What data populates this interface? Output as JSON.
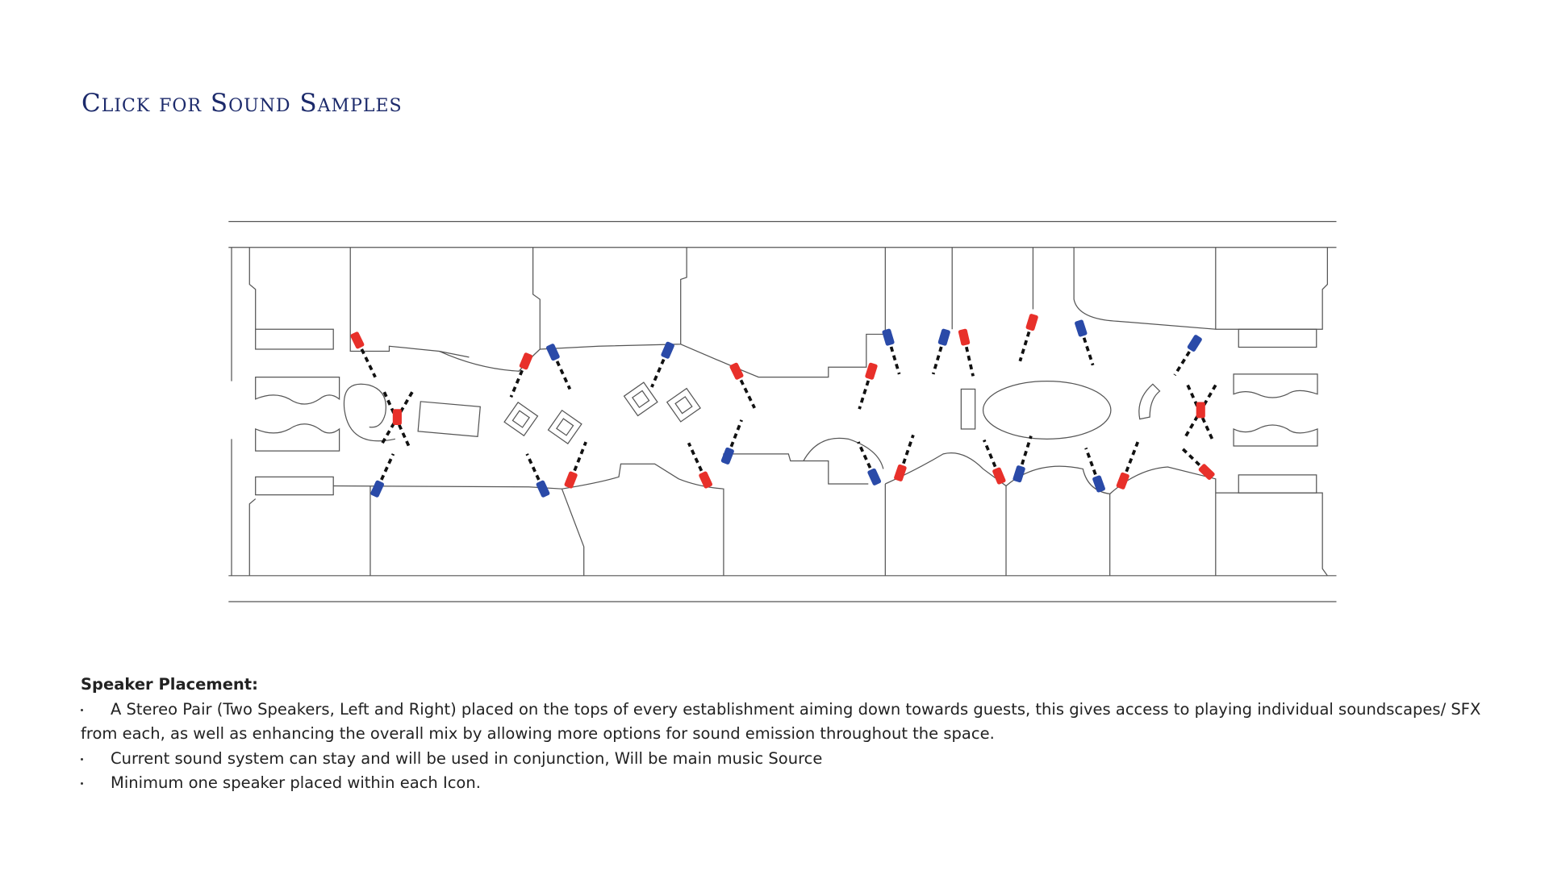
{
  "header": {
    "title": "Click for Sound Samples"
  },
  "notes": {
    "heading": "Speaker Placement:",
    "items": [
      "A Stereo Pair (Two Speakers, Left and Right) placed on the tops of every establishment aiming down towards guests, this gives access to playing individual soundscapes/ SFX from each, as well as enhancing the overall mix by allowing more options for sound emission throughout the space.",
      "Current sound system can stay and will be used in conjunction, Will be main music Source",
      "Minimum one speaker placed within each Icon."
    ]
  }
}
